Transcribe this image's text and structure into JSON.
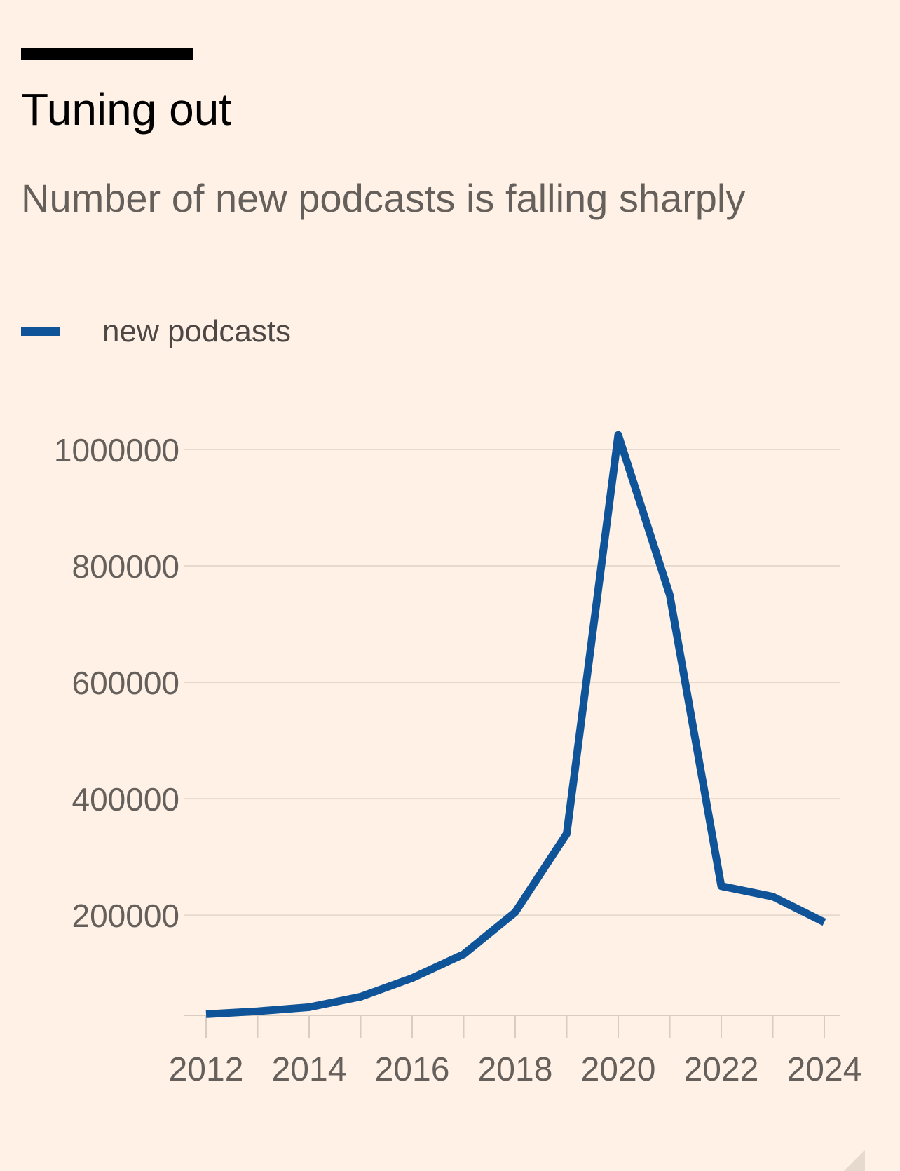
{
  "title": "Tuning out",
  "subtitle": "Number of new podcasts is falling sharply",
  "colors": {
    "background": "#FFF1E5",
    "line": "#0F5499",
    "gridline": "#E6D9CE",
    "text_muted": "#66605C"
  },
  "chart_data": {
    "type": "line",
    "x": [
      2012,
      2013,
      2014,
      2015,
      2016,
      2017,
      2018,
      2019,
      2020,
      2021,
      2022,
      2023,
      2024
    ],
    "series": [
      {
        "name": "new podcasts",
        "values": [
          30000,
          35000,
          42000,
          60000,
          92000,
          133000,
          205000,
          340000,
          1025000,
          750000,
          250000,
          232000,
          188000
        ]
      }
    ],
    "x_ticks": [
      "2012",
      "2014",
      "2016",
      "2018",
      "2020",
      "2022",
      "2024"
    ],
    "y_ticks": [
      "1000000",
      "800000",
      "600000",
      "400000",
      "200000"
    ],
    "xlim": [
      2012,
      2024
    ],
    "ylim": [
      28000,
      1000000
    ],
    "grid": true,
    "legend_position": "top-left"
  }
}
